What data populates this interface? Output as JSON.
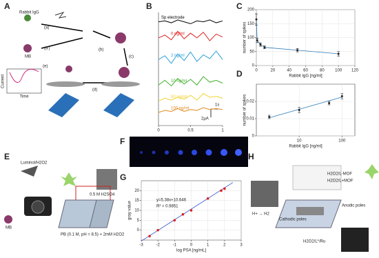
{
  "panels": {
    "labels": [
      "A",
      "B",
      "C",
      "D",
      "E",
      "F",
      "G",
      "H"
    ]
  },
  "diagram_a": {
    "texts": [
      "Rabbit IgG",
      "(a)",
      "(a')",
      "(b)",
      "(c)",
      "(d)",
      "(e)",
      "MB",
      "Current",
      "Time"
    ]
  },
  "diagram_e": {
    "texts": [
      "Luminol/H2O2",
      "MB",
      "PB (0.1 M, pH = 8.5) + 2mM H2O2",
      "0.5 M H2SO4"
    ]
  },
  "diagram_h": {
    "texts": [
      "H2O2/L-MOF",
      "H2O2/L+MOF",
      "Anodic poles",
      "Cathodic poles",
      "H+ → H2",
      "H2O2/L*/Ru"
    ]
  },
  "chart_data": [
    {
      "type": "line",
      "x": [
        0,
        0.1,
        0.2,
        0.3,
        0.4,
        0.5,
        0.6,
        0.7,
        0.8,
        0.9,
        1
      ],
      "xlim": [
        0,
        1
      ],
      "xticks": [
        0,
        0.5,
        1
      ],
      "ylim": [
        0,
        12
      ],
      "annotations": [
        "1s",
        "2μA"
      ],
      "series": [
        {
          "name": "Sp electrode",
          "color": "#000000",
          "values": [
            11,
            11.1,
            10.9,
            11.2,
            11,
            10.8,
            11.1,
            11,
            11.2,
            10.9,
            11.1
          ]
        },
        {
          "name": "0 ng/ml",
          "color": "#e02020",
          "values": [
            9.3,
            9.6,
            9.1,
            10,
            9.2,
            9.8,
            9.3,
            9.9,
            9,
            9.7,
            9.4
          ]
        },
        {
          "name": "2 ng/ml",
          "color": "#2aa0d8",
          "values": [
            7,
            7.4,
            6.6,
            7.6,
            6.9,
            7.8,
            6.8,
            7.5,
            7.1,
            7.9,
            7
          ]
        },
        {
          "name": "10 ng/ml",
          "color": "#3fae2a",
          "values": [
            4.3,
            4.8,
            4.2,
            5,
            4.4,
            4.9,
            4.3,
            5.2,
            4.6,
            4.8,
            4.5
          ]
        },
        {
          "name": "50 ng/ml",
          "color": "#f2d230",
          "values": [
            2.6,
            2.9,
            2.7,
            3,
            2.8,
            3.2,
            2.7,
            3.4,
            3,
            3.1,
            2.9
          ]
        },
        {
          "name": "100 ng/ml",
          "color": "#e08a1e",
          "values": [
            1.4,
            1.6,
            1.5,
            1.8,
            1.5,
            1.7,
            1.6,
            1.9,
            1.7,
            1.8,
            1.7
          ]
        }
      ]
    },
    {
      "type": "errorbar",
      "x": [
        0,
        1,
        5,
        10,
        50,
        100
      ],
      "values": [
        165,
        90,
        75,
        65,
        55,
        42
      ],
      "errors": [
        20,
        8,
        6,
        5,
        6,
        8
      ],
      "color": "#2a7ab8",
      "connect": true,
      "xlim": [
        0,
        120
      ],
      "xticks": [
        0,
        20,
        40,
        60,
        80,
        100,
        120
      ],
      "ylim": [
        0,
        200
      ],
      "yticks": [
        0,
        50,
        100,
        150,
        200
      ],
      "xlabel": "Rabbit IgG [ng/ml]",
      "ylabel": "number of spikes",
      "grid": true
    },
    {
      "type": "errorbar",
      "x": [
        2,
        10,
        50,
        100
      ],
      "values": [
        0.011,
        0.015,
        0.019,
        0.023
      ],
      "errors": [
        0.001,
        0.0015,
        0.001,
        0.0015
      ],
      "color": "#2a7ab8",
      "xscale": "log",
      "xlim": [
        1,
        200
      ],
      "xticks": [
        10,
        100
      ],
      "ylim": [
        0,
        0.03
      ],
      "yticks": [
        0,
        0.01,
        0.02
      ],
      "fit_line": {
        "x": [
          2,
          100
        ],
        "values": [
          0.0105,
          0.0225
        ]
      },
      "xlabel": "Rabbit IgG [ng/ml]",
      "ylabel": "number of spikes",
      "grid": true
    },
    {
      "type": "scatter",
      "x": [
        -2.5,
        -2,
        -1,
        -0.5,
        0,
        1,
        1.8,
        2
      ],
      "values": [
        -3,
        0,
        5,
        8,
        10,
        16,
        20,
        21
      ],
      "color": "#e02020",
      "fit_line": {
        "x": [
          -3,
          2.5
        ],
        "values": [
          -5.5,
          24.1
        ]
      },
      "fit_color": "#3050d0",
      "xlim": [
        -3,
        3
      ],
      "xticks": [
        -3,
        -2,
        -1,
        0,
        1,
        2,
        3
      ],
      "ylim": [
        -5,
        25
      ],
      "yticks": [
        0,
        5,
        10,
        15,
        20
      ],
      "xlabel": "log PSA [ng/mL]",
      "ylabel": "gray value",
      "annotations": [
        "y=5.38x+10.646",
        "R² = 0.9851"
      ],
      "grid": true
    }
  ]
}
